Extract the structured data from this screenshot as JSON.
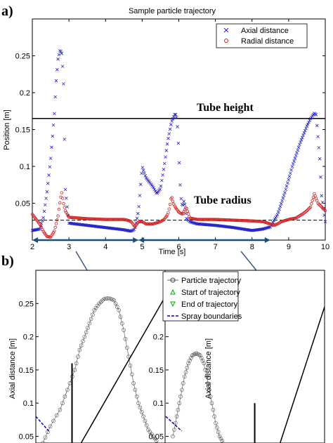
{
  "panel_a_label": "a)",
  "panel_b_label": "b)",
  "chart_data": [
    {
      "type": "scatter",
      "title": "Sample particle trajectory",
      "xlabel": "Time [s]",
      "ylabel": "Position [m]",
      "xlim": [
        2,
        10
      ],
      "ylim": [
        0,
        0.3
      ],
      "xticks": [
        2,
        3,
        4,
        5,
        6,
        7,
        8,
        9,
        10
      ],
      "yticks": [
        0.05,
        0.1,
        0.15,
        0.2,
        0.25
      ],
      "grid": false,
      "legend": "top-right",
      "annotations": [
        {
          "text": "Tube height",
          "y": 0.165
        },
        {
          "text": "Tube radius",
          "y": 0.027
        }
      ],
      "reference_lines": [
        {
          "name": "Tube height",
          "y": 0.165,
          "style": "solid"
        },
        {
          "name": "Tube radius",
          "y": 0.027,
          "style": "dashed"
        }
      ],
      "series": [
        {
          "name": "Axial distance",
          "marker": "x",
          "color": "#2323c8",
          "x": [
            2.0,
            2.2,
            2.3,
            2.4,
            2.5,
            2.6,
            2.65,
            2.7,
            2.75,
            2.8,
            2.85,
            2.9,
            3.0,
            3.5,
            4.0,
            4.5,
            4.7,
            4.8,
            4.9,
            5.0,
            5.1,
            5.3,
            5.4,
            5.5,
            5.6,
            5.7,
            5.8,
            5.9,
            5.95,
            6.0,
            6.05,
            6.1,
            6.15,
            6.2,
            6.3,
            6.5,
            7.0,
            7.5,
            8.0,
            8.3,
            8.5,
            8.7,
            8.9,
            9.1,
            9.3,
            9.5,
            9.6,
            9.7,
            9.75,
            9.8,
            9.85,
            9.9,
            10.0
          ],
          "y": [
            0.013,
            0.015,
            0.03,
            0.065,
            0.11,
            0.17,
            0.215,
            0.245,
            0.257,
            0.255,
            0.22,
            0.07,
            0.023,
            0.02,
            0.017,
            0.014,
            0.012,
            0.015,
            0.04,
            0.1,
            0.085,
            0.072,
            0.063,
            0.07,
            0.1,
            0.135,
            0.16,
            0.172,
            0.165,
            0.12,
            0.06,
            0.045,
            0.055,
            0.03,
            0.025,
            0.022,
            0.02,
            0.017,
            0.013,
            0.015,
            0.018,
            0.035,
            0.065,
            0.1,
            0.13,
            0.155,
            0.165,
            0.172,
            0.17,
            0.14,
            0.11,
            0.06,
            0.025
          ]
        },
        {
          "name": "Radial distance",
          "marker": "o",
          "color": "#d22323",
          "x": [
            2.0,
            2.2,
            2.3,
            2.4,
            2.5,
            2.6,
            2.7,
            2.75,
            2.8,
            2.85,
            2.9,
            3.0,
            3.5,
            4.0,
            4.5,
            4.6,
            4.7,
            4.8,
            4.9,
            5.0,
            5.1,
            5.3,
            5.5,
            5.6,
            5.7,
            5.75,
            5.8,
            5.85,
            5.9,
            6.0,
            6.1,
            6.2,
            6.3,
            6.5,
            7.0,
            7.5,
            8.0,
            8.3,
            8.5,
            8.6,
            8.7,
            8.8,
            9.0,
            9.2,
            9.3,
            9.4,
            9.5,
            9.6,
            9.7,
            9.8,
            9.9,
            10.0
          ],
          "y": [
            0.035,
            0.022,
            0.012,
            0.005,
            0.004,
            0.012,
            0.032,
            0.05,
            0.065,
            0.05,
            0.04,
            0.031,
            0.029,
            0.028,
            0.028,
            0.027,
            0.025,
            0.018,
            0.025,
            0.025,
            0.022,
            0.022,
            0.025,
            0.028,
            0.035,
            0.045,
            0.06,
            0.05,
            0.045,
            0.038,
            0.035,
            0.045,
            0.03,
            0.028,
            0.028,
            0.027,
            0.026,
            0.025,
            0.022,
            0.02,
            0.022,
            0.025,
            0.028,
            0.03,
            0.033,
            0.036,
            0.04,
            0.045,
            0.063,
            0.05,
            0.045,
            0.04
          ]
        }
      ],
      "intervals": [
        {
          "x": [
            2.0,
            4.9
          ]
        },
        {
          "x": [
            4.9,
            8.5
          ]
        }
      ]
    },
    {
      "type": "line",
      "ylabel": "Axial distance [m]",
      "ylim": [
        0.04,
        0.3
      ],
      "yticks": [
        0.05,
        0.1,
        0.15,
        0.2,
        0.25
      ],
      "legend": "top-center",
      "legend_entries": [
        {
          "name": "Particle trajectory",
          "style": "line-circle",
          "color": "#666666"
        },
        {
          "name": "Start of trajectory",
          "style": "triangle-up",
          "color": "#00aa00"
        },
        {
          "name": "End of trajectory",
          "style": "triangle-down",
          "color": "#00aa00"
        },
        {
          "name": "Spray boundaries",
          "style": "dashed",
          "color": "#0000cc"
        }
      ],
      "series": [
        {
          "name": "Particle trajectory",
          "x": [
            0.15,
            0.12,
            0.08,
            0.05,
            0.02,
            0.0,
            -0.02,
            -0.04,
            -0.06,
            -0.08,
            -0.1,
            -0.12,
            -0.14,
            -0.16,
            -0.18,
            -0.2,
            -0.22,
            -0.24,
            -0.26,
            -0.28,
            -0.3,
            -0.32
          ],
          "y": [
            0.04,
            0.065,
            0.09,
            0.12,
            0.15,
            0.18,
            0.2,
            0.22,
            0.24,
            0.25,
            0.257,
            0.258,
            0.255,
            0.24,
            0.21,
            0.17,
            0.13,
            0.1,
            0.08,
            0.06,
            0.05,
            0.04
          ]
        }
      ]
    },
    {
      "type": "line",
      "ylabel": "Axial distance [m]",
      "ylim": [
        0.04,
        0.3
      ],
      "yticks": [
        0.05,
        0.1,
        0.15,
        0.2
      ],
      "series": [
        {
          "name": "Particle trajectory",
          "x": [
            0.12,
            0.1,
            0.08,
            0.06,
            0.04,
            0.02,
            0.0,
            -0.02,
            -0.04,
            -0.06,
            -0.08,
            -0.1,
            -0.12,
            -0.14
          ],
          "y": [
            0.05,
            0.08,
            0.11,
            0.14,
            0.16,
            0.172,
            0.175,
            0.172,
            0.16,
            0.13,
            0.1,
            0.07,
            0.05,
            0.04
          ]
        }
      ]
    }
  ]
}
